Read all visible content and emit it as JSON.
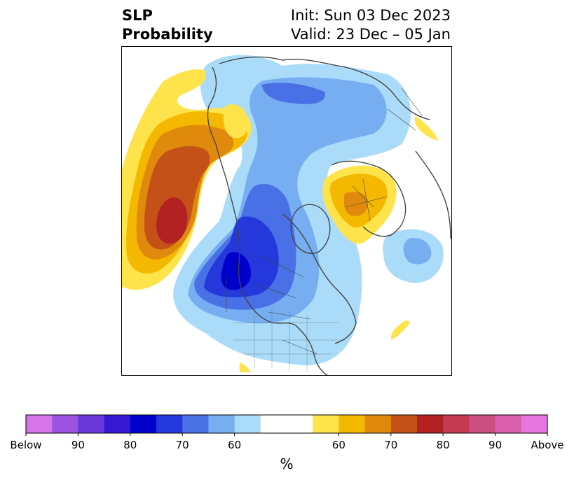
{
  "header": {
    "title_line1": "SLP",
    "title_line2": "Probability",
    "init_line": "Init: Sun 03 Dec 2023",
    "valid_line": "Valid: 23 Dec – 05 Jan"
  },
  "colorbar": {
    "colors": [
      "#d575e8",
      "#9b53e0",
      "#6a37d8",
      "#3618d3",
      "#0000cc",
      "#2438db",
      "#4a70e6",
      "#77aef2",
      "#aadcfa",
      "#ffffff",
      "#ffffff",
      "#fee34a",
      "#f5b800",
      "#e08a0d",
      "#c45218",
      "#b22222",
      "#c43a52",
      "#cc4f80",
      "#da5fae",
      "#e876e0"
    ],
    "tick_labels": [
      "Below",
      "90",
      "80",
      "70",
      "60",
      "60",
      "70",
      "80",
      "90",
      "Above"
    ],
    "unit": "%"
  },
  "map": {
    "palette": {
      "below_60": "#aadcfa",
      "below_70": "#77aef2",
      "below_75": "#4a70e6",
      "below_80": "#2438db",
      "below_85": "#0000cc",
      "above_60": "#fee34a",
      "above_65": "#f5b800",
      "above_70": "#e08a0d",
      "above_75": "#c45218",
      "above_80": "#b22222",
      "coast": "#444444"
    }
  }
}
